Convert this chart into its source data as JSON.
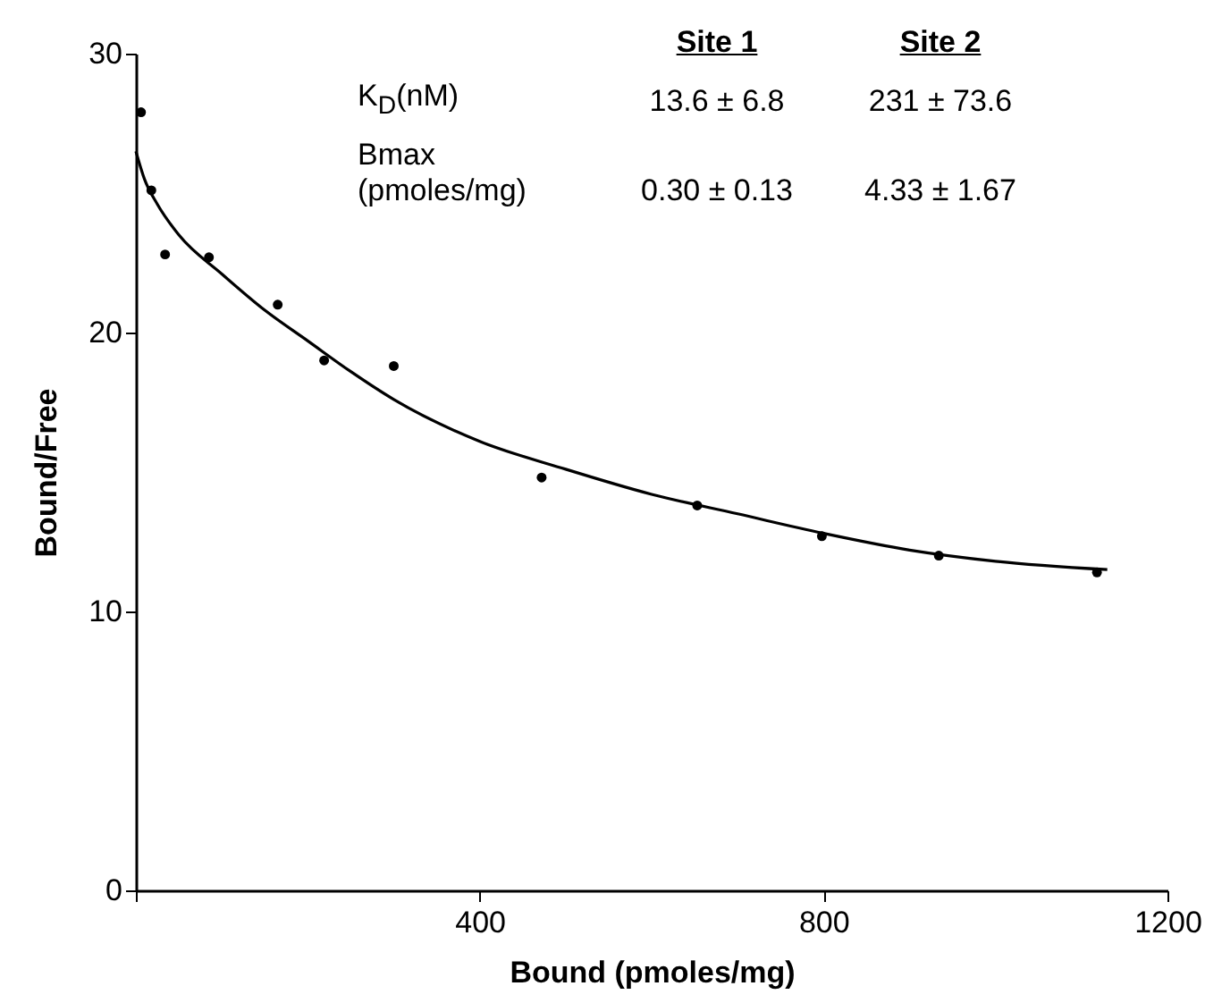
{
  "chart_data": {
    "type": "scatter",
    "xlabel": "Bound (pmoles/mg)",
    "ylabel": "Bound/Free",
    "xlim": [
      0,
      1200
    ],
    "ylim": [
      0,
      30
    ],
    "xticks": [
      {
        "value": 0,
        "label": null
      },
      400,
      800,
      1200
    ],
    "yticks": [
      0,
      10,
      20,
      30
    ],
    "grid": false,
    "annotations": [
      "Site 1",
      "Site 2",
      "K$_{D}$(nM)",
      "13.6 ± 6.8",
      "231 ± 73.6",
      "Bmax (pmoles/mg)",
      "0.30 ± 0.13",
      "4.33 ± 1.67"
    ],
    "series": [
      {
        "color": "#000000",
        "marker": "circle",
        "x": [
          6,
          18,
          34,
          85,
          165,
          219,
          300,
          472,
          653,
          798,
          934,
          1118
        ],
        "values": [
          27.9,
          25.1,
          22.8,
          22.7,
          21.0,
          19.0,
          18.8,
          14.8,
          13.8,
          12.7,
          12.0,
          11.4
        ]
      },
      {
        "type": "line",
        "color": "#000000",
        "marker": "none",
        "line_style": "solid",
        "x": [
          0,
          10,
          25,
          50,
          100,
          150,
          200,
          250,
          300,
          400,
          500,
          600,
          700,
          800,
          900,
          1000,
          1130
        ],
        "values": [
          26.5,
          25.5,
          24.6,
          23.5,
          22.1,
          20.8,
          19.7,
          18.6,
          17.6,
          16.1,
          15.1,
          14.2,
          13.5,
          12.8,
          12.2,
          11.8,
          11.5
        ]
      }
    ]
  }
}
